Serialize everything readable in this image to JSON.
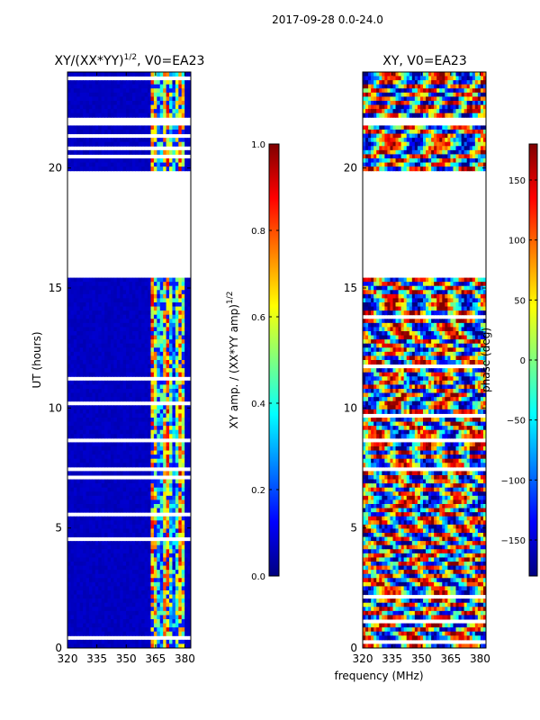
{
  "suptitle": "2017-09-28 0.0-24.0",
  "chart_data": [
    {
      "type": "heatmap",
      "title_main": "XY/(XX*YY)",
      "title_sup": "1/2",
      "title_tail": ", V0=EA23",
      "ylabel": "UT (hours)",
      "xlabel": "",
      "xlim": [
        320,
        383
      ],
      "ylim": [
        0,
        24
      ],
      "xticks": [
        "320",
        "335",
        "350",
        "365",
        "380"
      ],
      "xtick_values": [
        320,
        335,
        350,
        365,
        380
      ],
      "yticks": [
        "0",
        "5",
        "10",
        "15",
        "20"
      ],
      "ytick_values": [
        0,
        5,
        10,
        15,
        20
      ],
      "colormap": "jet",
      "colorbar": {
        "label_main": "XY amp. / (XX*YY amp)",
        "label_sup": "1/2",
        "range": [
          0.0,
          1.0
        ],
        "ticks": [
          "0.0",
          "0.2",
          "0.4",
          "0.6",
          "0.8",
          "1.0"
        ],
        "tick_values": [
          0.0,
          0.2,
          0.4,
          0.6,
          0.8,
          1.0
        ]
      },
      "data_gaps_hours": [
        [
          15.4,
          19.8
        ],
        [
          7.4,
          7.6
        ],
        [
          8.5,
          8.7
        ],
        [
          21.9,
          22.1
        ]
      ],
      "high_amplitude_band_mhz": [
        362,
        380
      ],
      "background_value": 0.05
    },
    {
      "type": "heatmap",
      "title": "XY, V0=EA23",
      "ylabel": "",
      "xlabel": "frequency (MHz)",
      "xlim": [
        320,
        383
      ],
      "ylim": [
        0,
        24
      ],
      "xticks": [
        "320",
        "335",
        "350",
        "365",
        "380"
      ],
      "xtick_values": [
        320,
        335,
        350,
        365,
        380
      ],
      "yticks": [
        "0",
        "5",
        "10",
        "15",
        "20"
      ],
      "ytick_values": [
        0,
        5,
        10,
        15,
        20
      ],
      "colormap": "jet",
      "colorbar": {
        "label": "phase (deg)",
        "range": [
          -180,
          180
        ],
        "ticks": [
          "150",
          "100",
          "50",
          "0",
          "−50",
          "−100",
          "−150"
        ],
        "tick_values": [
          150,
          100,
          50,
          0,
          -50,
          -100,
          -150
        ]
      },
      "data_gaps_hours": [
        [
          15.4,
          19.8
        ],
        [
          7.4,
          7.6
        ],
        [
          8.5,
          8.7
        ],
        [
          21.9,
          22.1
        ]
      ]
    }
  ]
}
